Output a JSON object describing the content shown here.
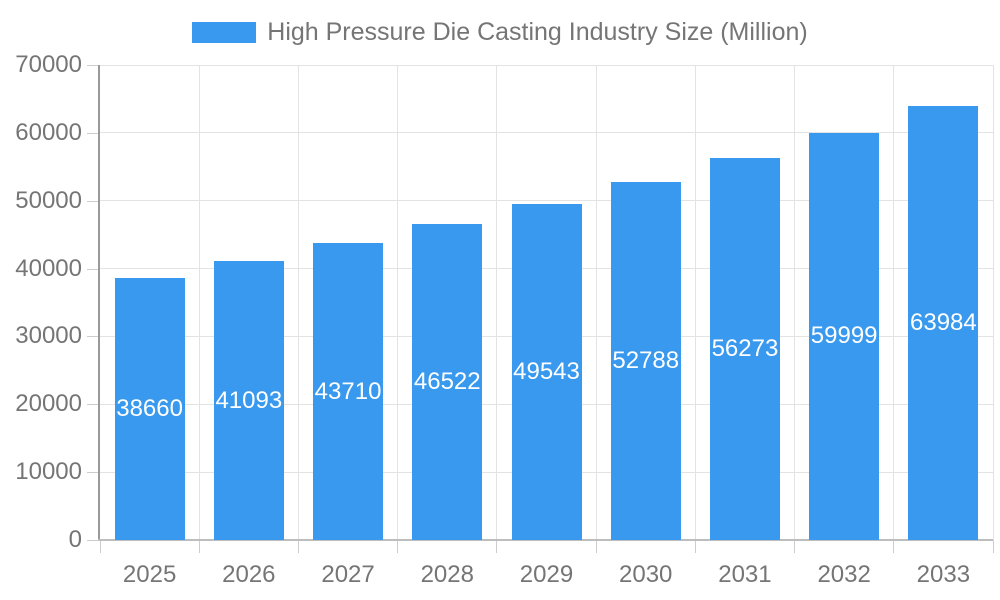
{
  "legend": {
    "label": "High Pressure Die Casting Industry Size (Million)"
  },
  "chart_data": {
    "type": "bar",
    "title": "High Pressure Die Casting Industry Size (Million)",
    "categories": [
      "2025",
      "2026",
      "2027",
      "2028",
      "2029",
      "2030",
      "2031",
      "2032",
      "2033"
    ],
    "values": [
      38660,
      41093,
      43710,
      46522,
      49543,
      52788,
      56273,
      59999,
      63984
    ],
    "xlabel": "",
    "ylabel": "",
    "ylim": [
      0,
      70000
    ],
    "yticks": [
      0,
      10000,
      20000,
      30000,
      40000,
      50000,
      60000,
      70000
    ],
    "grid": true,
    "legend_position": "top",
    "colors": {
      "bar": "#3899EE",
      "axis_text": "#757575",
      "grid_line": "#E3E3E3",
      "y_axis_line": "#999999",
      "x_axis_line": "#BDBDBD",
      "tick_mark": "#CCCCCC",
      "value_label": "#FFFFFF",
      "background": "#FFFFFF"
    }
  }
}
